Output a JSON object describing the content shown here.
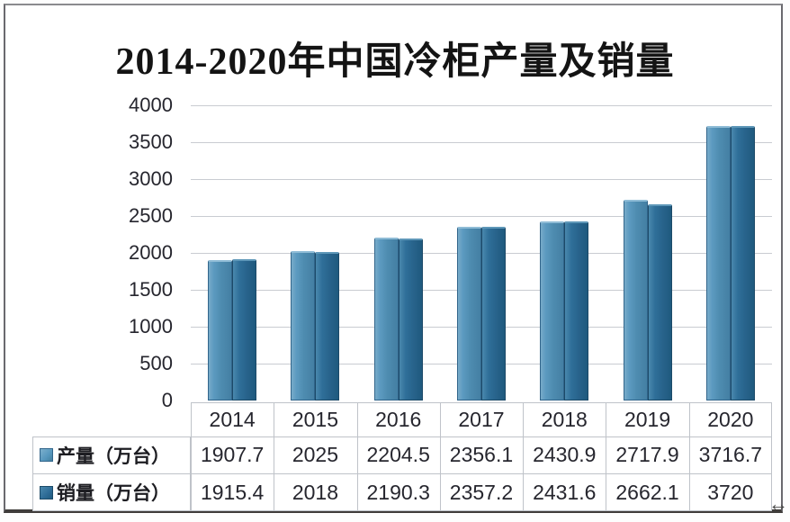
{
  "chart_data": {
    "type": "bar",
    "title": "2014-2020年中国冷柜产量及销量",
    "categories": [
      "2014",
      "2015",
      "2016",
      "2017",
      "2018",
      "2019",
      "2020"
    ],
    "series": [
      {
        "name": "产量（万台）",
        "values": [
          1907.7,
          2025,
          2204.5,
          2356.1,
          2430.9,
          2717.9,
          3716.7
        ],
        "color": "#4e8cb0"
      },
      {
        "name": "销量（万台）",
        "values": [
          1915.4,
          2018,
          2190.3,
          2357.2,
          2431.6,
          2662.1,
          3720
        ],
        "color": "#27628a"
      }
    ],
    "ylim": [
      0,
      4000
    ],
    "ytick_step": 500,
    "ytick_labels": [
      "0",
      "500",
      "1000",
      "1500",
      "2000",
      "2500",
      "3000",
      "3500",
      "4000"
    ],
    "grid": true,
    "legend_position": "table-left",
    "data_table_shown": true
  },
  "colors": {
    "production_bar": "#4e8cb0",
    "sales_bar": "#27628a",
    "gridline": "#c9ccd1",
    "table_border": "#bfc3c9",
    "text": "#26262e",
    "frame_border": "#6a696e"
  },
  "cursor": {
    "glyph": "↔"
  }
}
